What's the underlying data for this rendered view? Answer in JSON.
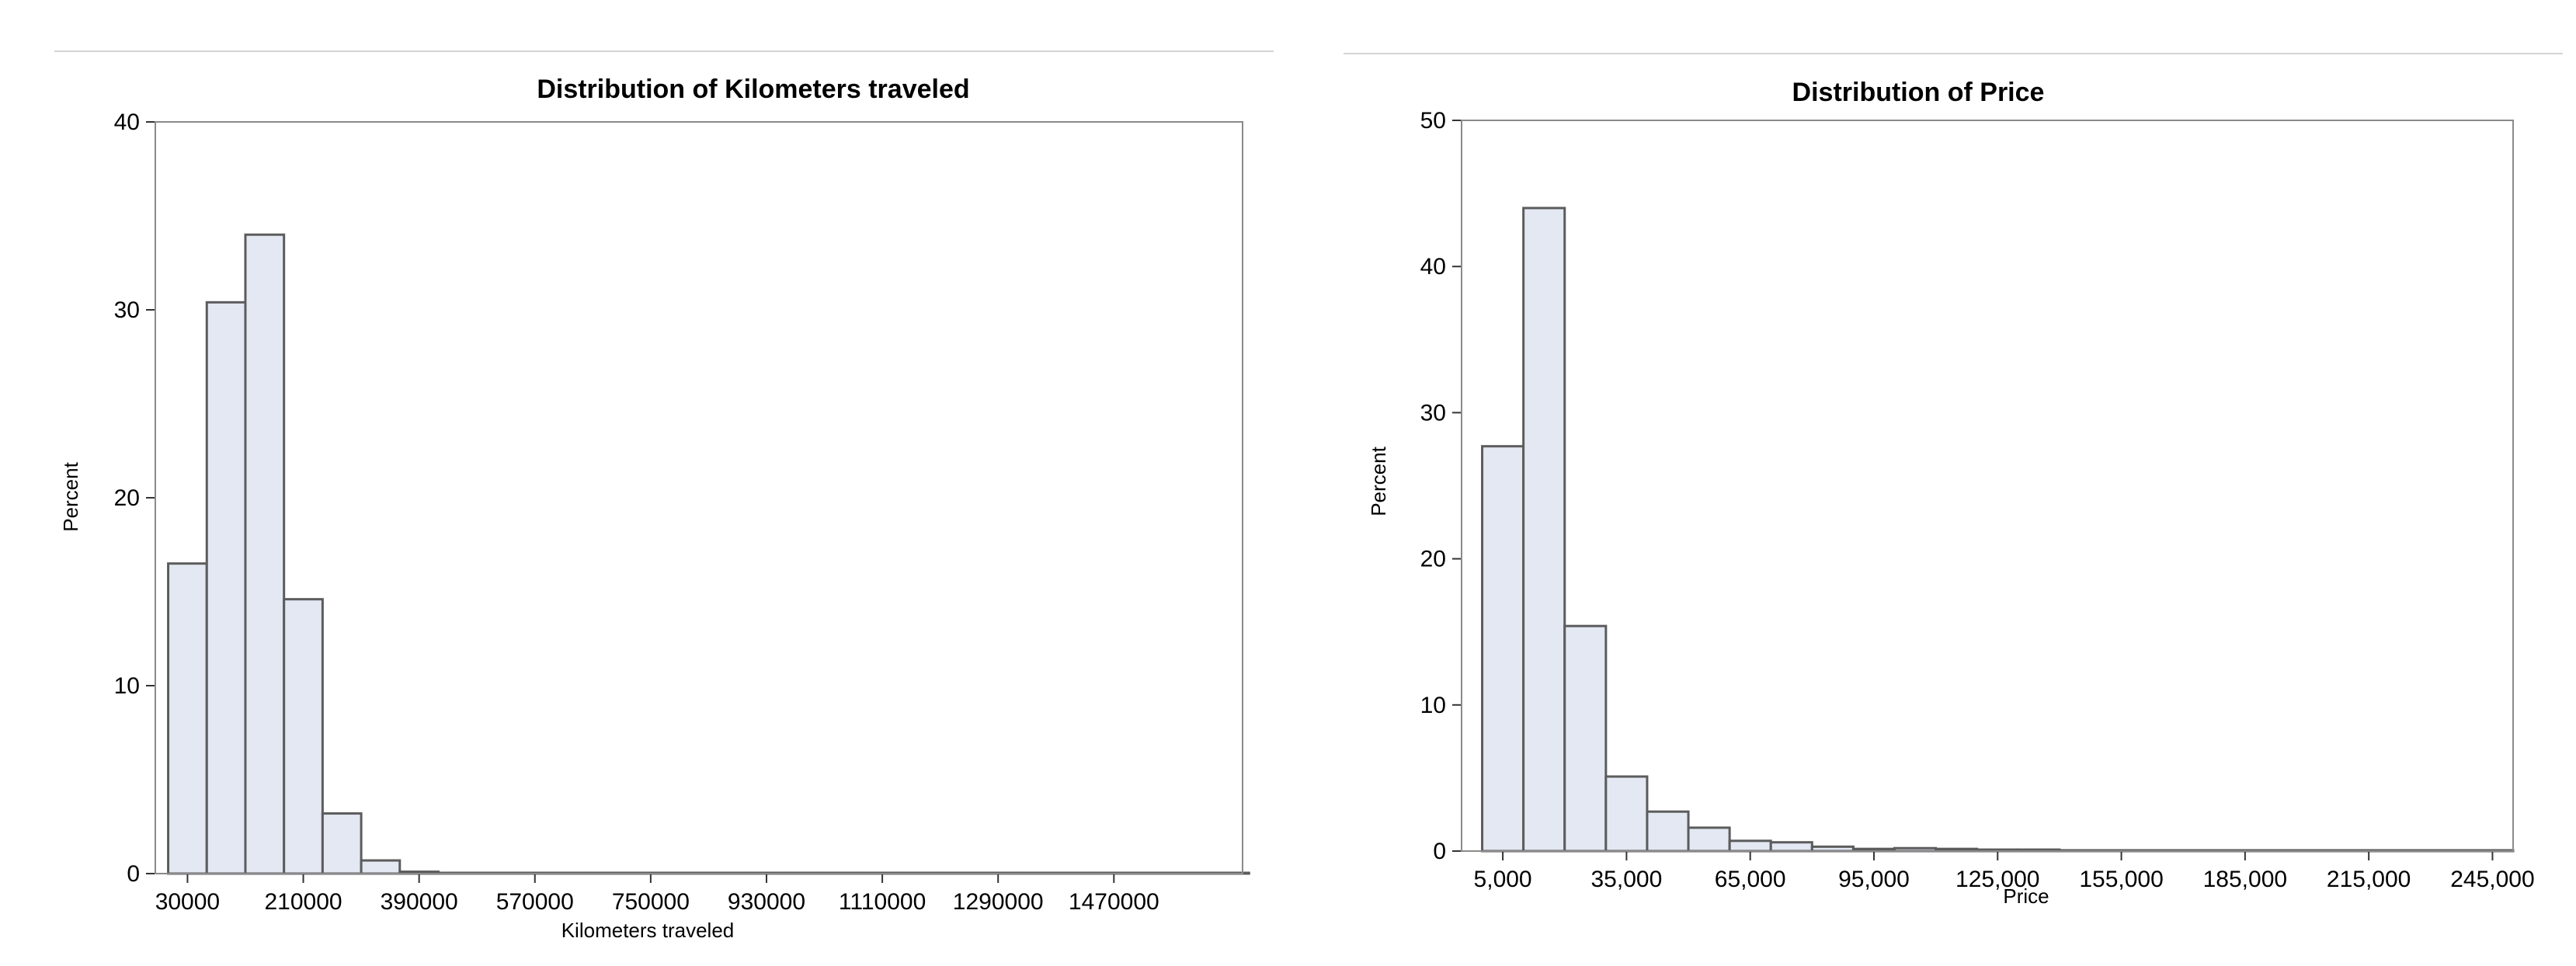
{
  "chart_data": [
    {
      "type": "bar",
      "title": "Distribution of  Kilometers traveled",
      "xlabel": "Kilometers traveled",
      "ylabel": "Percent",
      "ylim": [
        0,
        40
      ],
      "yticks": [
        0,
        10,
        20,
        30,
        40
      ],
      "xticks": [
        "30000",
        "210000",
        "390000",
        "570000",
        "750000",
        "930000",
        "1110000",
        "1290000",
        "1470000"
      ],
      "xrange": [
        -20000,
        1670000
      ],
      "bin_width": 60000,
      "bin_start": 0,
      "values": [
        16.5,
        30.4,
        34.0,
        14.6,
        3.2,
        0.7,
        0.1,
        0.03,
        0.02,
        0.01,
        0.01,
        0.01,
        0.01,
        0.01,
        0.01,
        0.01,
        0.01,
        0.01,
        0.01,
        0.01,
        0.01,
        0.01,
        0.01,
        0.01,
        0.01,
        0.01,
        0.01,
        0.01
      ],
      "grid": false,
      "bar_color": "#e3e8f3",
      "edge_color": "#5c5c5c"
    },
    {
      "type": "bar",
      "title": "Distribution of  Price",
      "xlabel": "Price",
      "ylabel": "Percent",
      "ylim": [
        0,
        50
      ],
      "yticks": [
        0,
        10,
        20,
        30,
        40,
        50
      ],
      "xticks": [
        "5,000",
        "35,000",
        "65,000",
        "95,000",
        "125,000",
        "155,000",
        "185,000",
        "215,000",
        "245,000"
      ],
      "xrange": [
        -5000,
        250000
      ],
      "bin_width": 10000,
      "bin_start": 0,
      "values": [
        27.7,
        44.0,
        15.4,
        5.1,
        2.7,
        1.6,
        0.7,
        0.6,
        0.3,
        0.15,
        0.2,
        0.15,
        0.1,
        0.1,
        0.02,
        0.05,
        0.02,
        0.05,
        0.01,
        0.01,
        0.01,
        0.01,
        0.01,
        0.01,
        0.01
      ],
      "grid": false,
      "bar_color": "#e3e8f3",
      "edge_color": "#5c5c5c"
    }
  ]
}
